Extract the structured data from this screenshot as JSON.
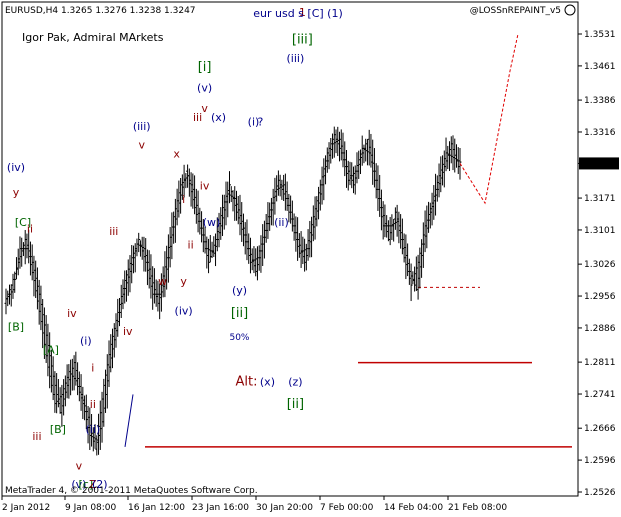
{
  "chart_data": {
    "type": "ohlc",
    "symbol_info": "EURUSD,H4  1.3265 1.3276 1.3238 1.3247",
    "title": "eur usd s [C] (1)",
    "author": "Igor Pak, Admiral MArkets",
    "watermark": "@LOSSnREPAINT_v5",
    "footer": "MetaTrader 4, © 2001-2011 MetaQuotes Software Corp.",
    "current_price": "1.3247",
    "y_ticks": [
      "1.3531",
      "1.3461",
      "1.3386",
      "1.3316",
      "1.3247",
      "1.3171",
      "1.3101",
      "1.3026",
      "1.2956",
      "1.2886",
      "1.2811",
      "1.2741",
      "1.2666",
      "1.2596",
      "1.2526"
    ],
    "x_ticks": [
      "2 Jan 2012",
      "9 Jan 08:00",
      "16 Jan 12:00",
      "23 Jan 16:00",
      "30 Jan 20:00",
      "7 Feb 00:00",
      "14 Feb 04:00",
      "21 Feb 08:00"
    ],
    "ylim": [
      1.2526,
      1.3531
    ],
    "price_path": [
      [
        1.294,
        1.295
      ],
      [
        1.298,
        1.297
      ],
      [
        1.303,
        1.306
      ],
      [
        1.308,
        1.306
      ],
      [
        1.303,
        1.299
      ],
      [
        1.296,
        1.29
      ],
      [
        1.287,
        1.28
      ],
      [
        1.278,
        1.272
      ],
      [
        1.27,
        1.274
      ],
      [
        1.276,
        1.279
      ],
      [
        1.281,
        1.277
      ],
      [
        1.274,
        1.272
      ],
      [
        1.269,
        1.265
      ],
      [
        1.262,
        1.264
      ],
      [
        1.268,
        1.276
      ],
      [
        1.28,
        1.285
      ],
      [
        1.288,
        1.292
      ],
      [
        1.296,
        1.299
      ],
      [
        1.301,
        1.304
      ],
      [
        1.307,
        1.308
      ],
      [
        1.306,
        1.303
      ],
      [
        1.3,
        1.296
      ],
      [
        1.294,
        1.296
      ],
      [
        1.299,
        1.304
      ],
      [
        1.309,
        1.313
      ],
      [
        1.316,
        1.32
      ],
      [
        1.323,
        1.322
      ],
      [
        1.319,
        1.315
      ],
      [
        1.312,
        1.309
      ],
      [
        1.306,
        1.303
      ],
      [
        1.305,
        1.308
      ],
      [
        1.311,
        1.315
      ],
      [
        1.318,
        1.32
      ],
      [
        1.317,
        1.314
      ],
      [
        1.312,
        1.309
      ],
      [
        1.306,
        1.303
      ],
      [
        1.301,
        1.304
      ],
      [
        1.307,
        1.31
      ],
      [
        1.313,
        1.316
      ],
      [
        1.319,
        1.321
      ],
      [
        1.32,
        1.317
      ],
      [
        1.314,
        1.311
      ],
      [
        1.308,
        1.305
      ],
      [
        1.303,
        1.306
      ],
      [
        1.309,
        1.313
      ],
      [
        1.316,
        1.32
      ],
      [
        1.324,
        1.327
      ],
      [
        1.329,
        1.331
      ],
      [
        1.33,
        1.327
      ],
      [
        1.324,
        1.321
      ],
      [
        1.32,
        1.323
      ],
      [
        1.326,
        1.328
      ],
      [
        1.33,
        1.327
      ],
      [
        1.323,
        1.319
      ],
      [
        1.315,
        1.311
      ],
      [
        1.308,
        1.311
      ],
      [
        1.314,
        1.312
      ],
      [
        1.308,
        1.304
      ],
      [
        1.301,
        1.298
      ],
      [
        1.297,
        1.303
      ],
      [
        1.307,
        1.311
      ],
      [
        1.314,
        1.316
      ],
      [
        1.319,
        1.322
      ],
      [
        1.324,
        1.327
      ],
      [
        1.329,
        1.326
      ],
      [
        1.324,
        1.325
      ]
    ],
    "projection_path": [
      [
        1.3247,
        0
      ],
      [
        1.316,
        1
      ],
      [
        1.345,
        2
      ],
      [
        1.3531,
        3
      ]
    ],
    "annotations": [
      {
        "text": "(iv)",
        "color": "#00008B",
        "price": 1.323,
        "bar": 0
      },
      {
        "text": "y",
        "color": "#8B0000",
        "price": 1.3175,
        "bar": 0
      },
      {
        "text": "[C]",
        "color": "#006400",
        "price": 1.311,
        "bar": 1
      },
      {
        "text": "ii",
        "color": "#8B0000",
        "price": 1.3095,
        "bar": 2
      },
      {
        "text": "[B]",
        "color": "#006400",
        "price": 1.288,
        "bar": 0
      },
      {
        "text": "[A]",
        "color": "#006400",
        "price": 1.283,
        "bar": 5
      },
      {
        "text": "iv",
        "color": "#8B0000",
        "price": 1.291,
        "bar": 8
      },
      {
        "text": "(i)",
        "color": "#00008B",
        "price": 1.285,
        "bar": 10
      },
      {
        "text": "i",
        "color": "#8B0000",
        "price": 1.279,
        "bar": 11
      },
      {
        "text": "ii",
        "color": "#8B0000",
        "price": 1.271,
        "bar": 11
      },
      {
        "text": "iii",
        "color": "#8B0000",
        "price": 1.264,
        "bar": 3
      },
      {
        "text": "[B]",
        "color": "#006400",
        "price": 1.2655,
        "bar": 6
      },
      {
        "text": "(ii)",
        "color": "#00008B",
        "price": 1.2655,
        "bar": 11
      },
      {
        "text": "v",
        "color": "#8B0000",
        "price": 1.2575,
        "bar": 9
      },
      {
        "text": "(v)",
        "color": "#00008B",
        "price": 1.2535,
        "bar": 9
      },
      {
        "text": "[c]",
        "color": "#006400",
        "price": 1.2535,
        "bar": 10
      },
      {
        "text": "Z",
        "color": "#8B0000",
        "price": 1.2535,
        "bar": 11
      },
      {
        "text": "(2)",
        "color": "#00008B",
        "price": 1.2535,
        "bar": 12
      },
      {
        "text": "iii",
        "color": "#8B0000",
        "price": 1.309,
        "bar": 14
      },
      {
        "text": "iv",
        "color": "#8B0000",
        "price": 1.287,
        "bar": 16
      },
      {
        "text": "(iii)",
        "color": "#00008B",
        "price": 1.332,
        "bar": 18
      },
      {
        "text": "v",
        "color": "#8B0000",
        "price": 1.328,
        "bar": 18
      },
      {
        "text": "w",
        "color": "#8B0000",
        "price": 1.298,
        "bar": 21
      },
      {
        "text": "x",
        "color": "#8B0000",
        "price": 1.326,
        "bar": 23
      },
      {
        "text": "i",
        "color": "#8B0000",
        "price": 1.316,
        "bar": 24
      },
      {
        "text": "ii",
        "color": "#8B0000",
        "price": 1.306,
        "bar": 25
      },
      {
        "text": "y",
        "color": "#8B0000",
        "price": 1.298,
        "bar": 24
      },
      {
        "text": "(iv)",
        "color": "#00008B",
        "price": 1.2915,
        "bar": 24
      },
      {
        "text": "iii",
        "color": "#8B0000",
        "price": 1.334,
        "bar": 26
      },
      {
        "text": "[i]",
        "color": "#006400",
        "price": 1.345,
        "bar": 27
      },
      {
        "text": "(v)",
        "color": "#00008B",
        "price": 1.3405,
        "bar": 27
      },
      {
        "text": "v",
        "color": "#8B0000",
        "price": 1.336,
        "bar": 27
      },
      {
        "text": "iv",
        "color": "#8B0000",
        "price": 1.319,
        "bar": 27
      },
      {
        "text": "(x)",
        "color": "#00008B",
        "price": 1.334,
        "bar": 29
      },
      {
        "text": "(w)",
        "color": "#00008B",
        "price": 1.311,
        "bar": 28
      },
      {
        "text": "(y)",
        "color": "#00008B",
        "price": 1.296,
        "bar": 32
      },
      {
        "text": "[ii]",
        "color": "#006400",
        "price": 1.291,
        "bar": 32
      },
      {
        "text": "50%",
        "color": "#00008B",
        "price": 1.286,
        "bar": 32
      },
      {
        "text": "(i)",
        "color": "#00008B",
        "price": 1.333,
        "bar": 34
      },
      {
        "text": "?",
        "color": "#00008B",
        "price": 1.333,
        "bar": 35
      },
      {
        "text": "(ii)",
        "color": "#00008B",
        "price": 1.311,
        "bar": 38
      },
      {
        "text": "(iii)",
        "color": "#00008B",
        "price": 1.347,
        "bar": 40
      },
      {
        "text": "[iii]",
        "color": "#006400",
        "price": 1.351,
        "bar": 41
      },
      {
        "text": "1",
        "color": "#8B0000",
        "price": 1.357,
        "bar": 41
      },
      {
        "text": "Alt:",
        "color": "#8B0000",
        "price": 1.276,
        "bar": 33
      },
      {
        "text": "(x)",
        "color": "#00008B",
        "price": 1.276,
        "bar": 36
      },
      {
        "text": "(z)",
        "color": "#00008B",
        "price": 1.276,
        "bar": 40
      },
      {
        "text": "[ii]",
        "color": "#006400",
        "price": 1.271,
        "bar": 40
      }
    ],
    "levels": [
      {
        "price": 1.2625,
        "color": "#C00000",
        "dashed": false
      },
      {
        "price": 1.281,
        "color": "#C00000",
        "dashed": false
      },
      {
        "price": 1.2975,
        "color": "#C00000",
        "dashed": true
      }
    ],
    "grid": false
  }
}
